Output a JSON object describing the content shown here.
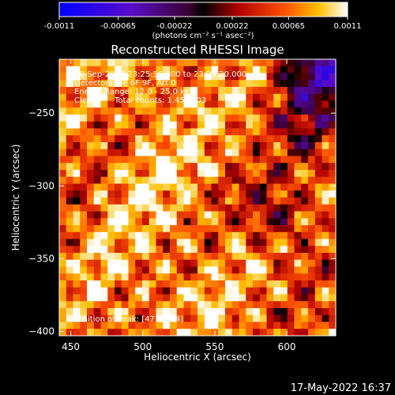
{
  "colorbar": {
    "min": -0.0011,
    "max": 0.0011,
    "tick_labels": [
      "-0.0011",
      "-0.00065",
      "-0.00022",
      "0.00022",
      "0.00065",
      "0.0011"
    ],
    "tick_values": [
      -0.0011,
      -0.00065,
      -0.00022,
      0.00022,
      0.00065,
      0.0011
    ],
    "unit_label": "(photons cm⁻² s⁻¹ asec⁻²)"
  },
  "chart_data": {
    "type": "heatmap",
    "title": "Reconstructed RHESSI Image",
    "xlabel": "Heliocentric X (arcsec)",
    "ylabel": "Heliocentric Y (arcsec)",
    "xlim": [
      442,
      634
    ],
    "ylim": [
      -403,
      -213
    ],
    "x_ticks": [
      450,
      500,
      550,
      600
    ],
    "x_tick_labels": [
      "450",
      "500",
      "550",
      "600"
    ],
    "y_ticks": [
      -250,
      -300,
      -350,
      -400
    ],
    "y_tick_labels": [
      "−250",
      "−300",
      "−350",
      "−400"
    ],
    "peak_position": [
      471,
      -354
    ],
    "annotations": {
      "time_range": "28-Sep-2014 23:25:56.000 to 23:29:20.000",
      "detectors": "Detectors: 3F 6F 9F, Att 0",
      "energy_range": "Energy Range: 12.0 - 25.0 keV",
      "clean_label": "Clean",
      "total_counts": "Total counts: 1.45E+03",
      "peak_text": "Position of Peak:  [471,-354]"
    }
  },
  "footer": {
    "timestamp": "17-May-2022 16:37"
  }
}
